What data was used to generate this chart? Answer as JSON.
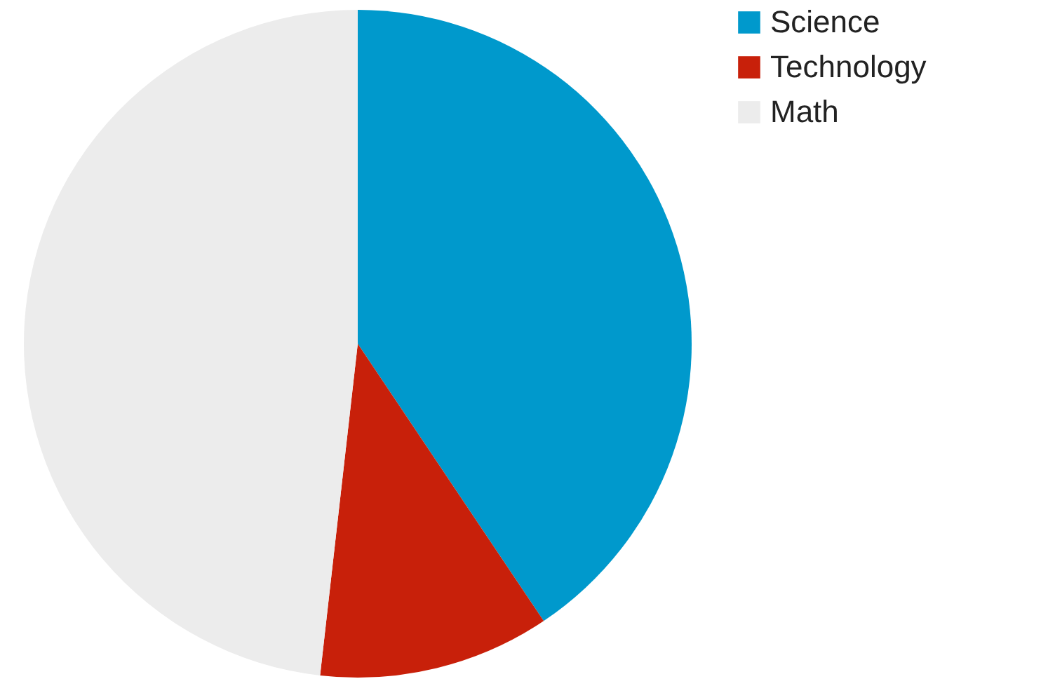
{
  "chart_data": {
    "type": "pie",
    "categories": [
      "Science",
      "Technology",
      "Math"
    ],
    "values": [
      40.6,
      11.2,
      48.2
    ],
    "colors": [
      "#0099cc",
      "#c8200a",
      "#ececec"
    ],
    "legend": "right"
  }
}
